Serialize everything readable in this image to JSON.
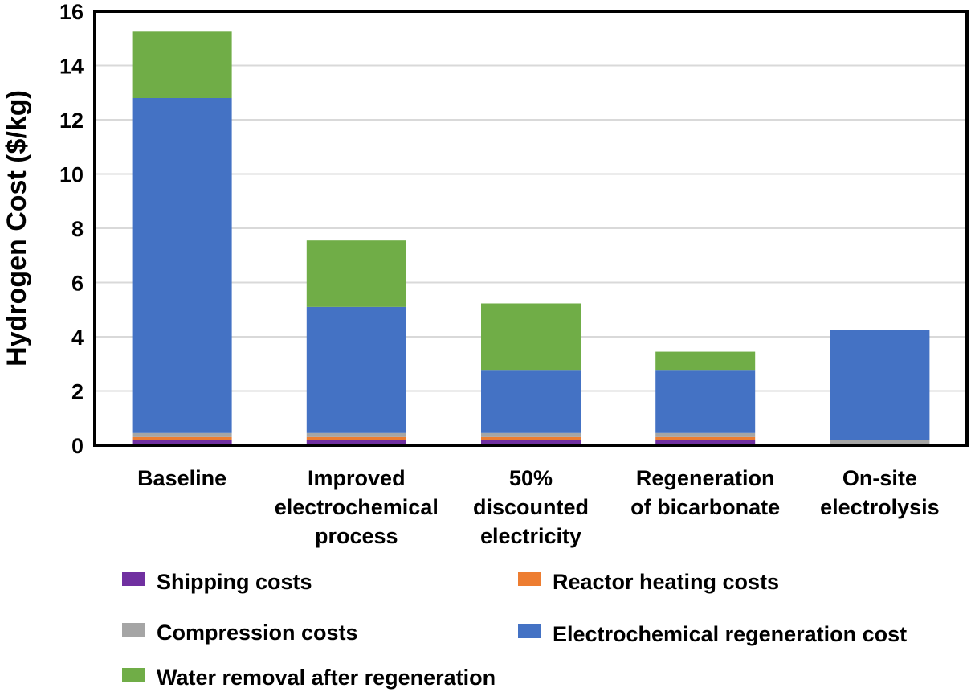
{
  "chart_data": {
    "type": "bar",
    "stacked": true,
    "categories": [
      [
        "Baseline"
      ],
      [
        "Improved",
        "electrochemical",
        "process"
      ],
      [
        "50%",
        "discounted",
        "electricity"
      ],
      [
        "Regeneration",
        "of bicarbonate"
      ],
      [
        "On-site",
        "electrolysis"
      ]
    ],
    "series": [
      {
        "name": "Shipping costs",
        "color": "#7030A0",
        "values": [
          0.2,
          0.2,
          0.2,
          0.2,
          0.0
        ]
      },
      {
        "name": "Reactor heating costs",
        "color": "#ED7D31",
        "values": [
          0.1,
          0.1,
          0.1,
          0.1,
          0.0
        ]
      },
      {
        "name": "Compression costs",
        "color": "#A5A5A5",
        "values": [
          0.15,
          0.15,
          0.15,
          0.15,
          0.2
        ]
      },
      {
        "name": "Electrochemical regeneration cost",
        "color": "#4472C4",
        "values": [
          12.35,
          4.65,
          2.33,
          2.33,
          4.05
        ]
      },
      {
        "name": "Water removal after regeneration",
        "color": "#70AD47",
        "values": [
          2.45,
          2.45,
          2.45,
          0.67,
          0.0
        ]
      }
    ],
    "legend_order": [
      0,
      1,
      2,
      3,
      4
    ],
    "title": "",
    "xlabel": "",
    "ylabel": "Hydrogen Cost ($/kg)",
    "ylim": [
      0,
      16
    ],
    "yticks": [
      0,
      2,
      4,
      6,
      8,
      10,
      12,
      14,
      16
    ],
    "grid": true,
    "legend_position": "bottom"
  }
}
